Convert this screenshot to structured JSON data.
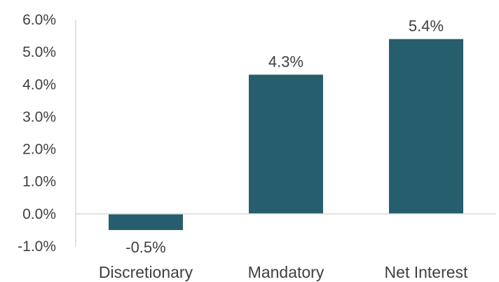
{
  "chart_data": {
    "type": "bar",
    "title": "",
    "xlabel": "",
    "ylabel": "",
    "categories": [
      "Discretionary",
      "Mandatory",
      "Net Interest"
    ],
    "values": [
      -0.5,
      4.3,
      5.4
    ],
    "data_labels": [
      "-0.5%",
      "4.3%",
      "5.4%"
    ],
    "ylim": [
      -1.0,
      6.0
    ],
    "yticks": [
      6.0,
      5.0,
      4.0,
      3.0,
      2.0,
      1.0,
      0.0,
      -1.0
    ],
    "ytick_labels": [
      "6.0%",
      "5.0%",
      "4.0%",
      "3.0%",
      "2.0%",
      "1.0%",
      "0.0%",
      "-1.0%"
    ],
    "grid": false,
    "legend": "none",
    "colors": {
      "bar": "#265e6e",
      "axis": "#d9d9d9",
      "text": "#404040"
    }
  }
}
